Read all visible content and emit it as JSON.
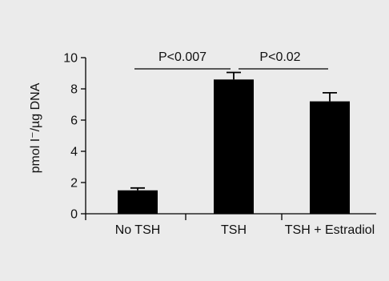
{
  "colors": {
    "panel_background": "#ebebeb",
    "bar_fill": "#000000",
    "axis": "#000000"
  },
  "chart_data": {
    "type": "bar",
    "title": "",
    "xlabel": "",
    "ylabel": "pmol I⁻/µg DNA",
    "ylim": [
      0,
      10
    ],
    "y_ticks": [
      "0",
      "2",
      "4",
      "6",
      "8",
      "10"
    ],
    "categories": [
      "No TSH",
      "TSH",
      "TSH + Estradiol"
    ],
    "values": [
      1.5,
      8.6,
      7.2
    ],
    "error": [
      0.15,
      0.45,
      0.55
    ],
    "grid": false,
    "legend": "none",
    "annotations": [
      {
        "text": "P<0.007",
        "from": "No TSH",
        "to": "TSH"
      },
      {
        "text": "P<0.02",
        "from": "TSH",
        "to": "TSH + Estradiol"
      }
    ]
  }
}
